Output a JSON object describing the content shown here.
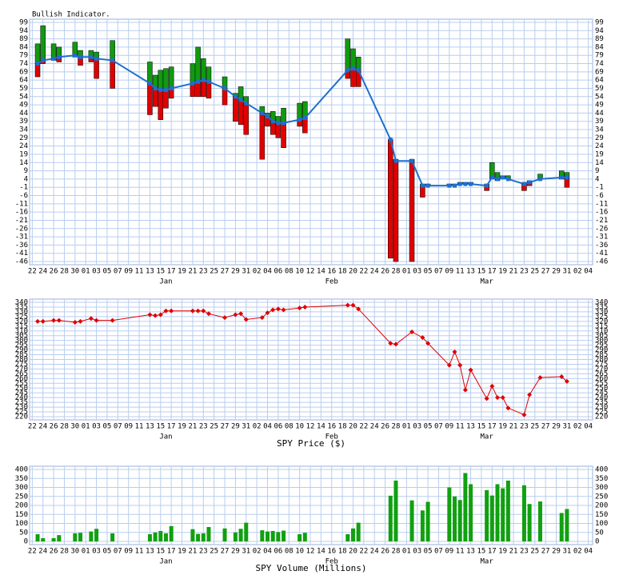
{
  "chart_data": [
    {
      "type": "hilo",
      "title": "Bullish Indicator.",
      "x": [
        1,
        2,
        4,
        5,
        8,
        9,
        11,
        12,
        15,
        22,
        23,
        24,
        25,
        26,
        30,
        31,
        32,
        33,
        36,
        38,
        39,
        40,
        43,
        44,
        45,
        46,
        47,
        50,
        51,
        59,
        60,
        61,
        67,
        68,
        71,
        73,
        74,
        78,
        79,
        80,
        81,
        82,
        85,
        86,
        87,
        88,
        89,
        92,
        93,
        95,
        99,
        100
      ],
      "values": [
        74,
        76,
        77,
        78,
        79,
        78,
        78,
        77,
        76,
        62,
        59,
        58,
        58,
        59,
        62,
        63,
        64,
        63,
        59,
        54,
        52,
        50,
        44,
        42,
        39,
        38,
        38,
        40,
        41,
        70,
        71,
        70,
        28,
        15,
        15,
        0,
        0,
        0,
        0,
        1,
        1,
        1,
        0,
        5,
        4,
        5,
        4,
        1,
        2,
        4,
        5,
        5
      ],
      "high": [
        86,
        97,
        86,
        84,
        87,
        82,
        82,
        81,
        88,
        75,
        67,
        70,
        71,
        72,
        74,
        84,
        77,
        72,
        66,
        56,
        60,
        54,
        48,
        44,
        45,
        42,
        47,
        50,
        51,
        89,
        83,
        78,
        28,
        16,
        16,
        1,
        1,
        1,
        1,
        2,
        2,
        2,
        1,
        14,
        8,
        6,
        6,
        2,
        3,
        7,
        9,
        8
      ],
      "low": [
        66,
        74,
        76,
        75,
        78,
        73,
        75,
        65,
        59,
        43,
        48,
        40,
        47,
        53,
        54,
        54,
        54,
        53,
        49,
        39,
        37,
        31,
        16,
        36,
        31,
        29,
        23,
        36,
        32,
        65,
        60,
        60,
        -44,
        -46,
        -46,
        -7,
        0,
        0,
        0,
        1,
        1,
        1,
        -3,
        4,
        3,
        4,
        4,
        -3,
        0,
        4,
        4,
        -1
      ],
      "color": "#1e6fcf",
      "high_color": "#109a10",
      "low_color": "#e00000",
      "xlim": [
        -0.5,
        104.8
      ],
      "xticks": [
        {
          "value": 0,
          "label": "22"
        },
        {
          "value": 2,
          "label": "24"
        },
        {
          "value": 4,
          "label": "26"
        },
        {
          "value": 6,
          "label": "28"
        },
        {
          "value": 8,
          "label": "30"
        },
        {
          "value": 10,
          "label": "01"
        },
        {
          "value": 12,
          "label": "03"
        },
        {
          "value": 14,
          "label": "05"
        },
        {
          "value": 16,
          "label": "07"
        },
        {
          "value": 18,
          "label": "09"
        },
        {
          "value": 20,
          "label": "11"
        },
        {
          "value": 22,
          "label": "13"
        },
        {
          "value": 24,
          "label": "15"
        },
        {
          "value": 26,
          "label": "17"
        },
        {
          "value": 28,
          "label": "19"
        },
        {
          "value": 30,
          "label": "21"
        },
        {
          "value": 32,
          "label": "23"
        },
        {
          "value": 34,
          "label": "25"
        },
        {
          "value": 36,
          "label": "27"
        },
        {
          "value": 38,
          "label": "29"
        },
        {
          "value": 40,
          "label": "31"
        },
        {
          "value": 42,
          "label": "02"
        },
        {
          "value": 44,
          "label": "04"
        },
        {
          "value": 46,
          "label": "06"
        },
        {
          "value": 48,
          "label": "08"
        },
        {
          "value": 50,
          "label": "10"
        },
        {
          "value": 52,
          "label": "12"
        },
        {
          "value": 54,
          "label": "14"
        },
        {
          "value": 56,
          "label": "16"
        },
        {
          "value": 58,
          "label": "18"
        },
        {
          "value": 60,
          "label": "20"
        },
        {
          "value": 62,
          "label": "22"
        },
        {
          "value": 64,
          "label": "24"
        },
        {
          "value": 66,
          "label": "26"
        },
        {
          "value": 68,
          "label": "28"
        },
        {
          "value": 70,
          "label": "01"
        },
        {
          "value": 72,
          "label": "03"
        },
        {
          "value": 74,
          "label": "05"
        },
        {
          "value": 76,
          "label": "07"
        },
        {
          "value": 78,
          "label": "09"
        },
        {
          "value": 80,
          "label": "11"
        },
        {
          "value": 82,
          "label": "13"
        },
        {
          "value": 84,
          "label": "15"
        },
        {
          "value": 86,
          "label": "17"
        },
        {
          "value": 88,
          "label": "19"
        },
        {
          "value": 90,
          "label": "21"
        },
        {
          "value": 92,
          "label": "23"
        },
        {
          "value": 94,
          "label": "25"
        },
        {
          "value": 96,
          "label": "27"
        },
        {
          "value": 98,
          "label": "29"
        },
        {
          "value": 100,
          "label": "31"
        },
        {
          "value": 102,
          "label": "02"
        },
        {
          "value": 104,
          "label": "04"
        }
      ],
      "month_ticks": [
        {
          "value": 25,
          "label": "Jan"
        },
        {
          "value": 56,
          "label": "Feb"
        },
        {
          "value": 85,
          "label": "Mar"
        }
      ],
      "ylim": [
        -46,
        99
      ],
      "yticks": [
        -46,
        -41,
        -36,
        -31,
        -26,
        -21,
        -16,
        -11,
        -6,
        -1,
        4,
        9,
        14,
        19,
        24,
        29,
        34,
        39,
        44,
        49,
        54,
        59,
        64,
        69,
        74,
        79,
        84,
        89,
        94,
        99
      ],
      "grid": true
    },
    {
      "type": "line",
      "xlabel": "SPY Price ($)",
      "x": [
        1,
        2,
        4,
        5,
        8,
        9,
        11,
        12,
        15,
        22,
        23,
        24,
        25,
        26,
        30,
        31,
        32,
        33,
        36,
        38,
        39,
        40,
        43,
        44,
        45,
        46,
        47,
        50,
        51,
        59,
        60,
        61,
        67,
        68,
        71,
        73,
        74,
        78,
        79,
        80,
        81,
        82,
        85,
        86,
        87,
        88,
        89,
        92,
        93,
        95,
        99,
        100
      ],
      "values": [
        320,
        320,
        321,
        321,
        319,
        320,
        323,
        321,
        321,
        327,
        326,
        327,
        331,
        331,
        331,
        331,
        331,
        328,
        324,
        327,
        328,
        322,
        324,
        329,
        332,
        333,
        332,
        334,
        335,
        337,
        337,
        333,
        297,
        296,
        309,
        303,
        297,
        274,
        288,
        274,
        248,
        269,
        239,
        252,
        240,
        240,
        229,
        222,
        243,
        261,
        262,
        257
      ],
      "color": "#e00000",
      "xlim": [
        -0.5,
        104.8
      ],
      "xticks": [
        {
          "value": 0,
          "label": "22"
        },
        {
          "value": 2,
          "label": "24"
        },
        {
          "value": 4,
          "label": "26"
        },
        {
          "value": 6,
          "label": "28"
        },
        {
          "value": 8,
          "label": "30"
        },
        {
          "value": 10,
          "label": "01"
        },
        {
          "value": 12,
          "label": "03"
        },
        {
          "value": 14,
          "label": "05"
        },
        {
          "value": 16,
          "label": "07"
        },
        {
          "value": 18,
          "label": "09"
        },
        {
          "value": 20,
          "label": "11"
        },
        {
          "value": 22,
          "label": "13"
        },
        {
          "value": 24,
          "label": "15"
        },
        {
          "value": 26,
          "label": "17"
        },
        {
          "value": 28,
          "label": "19"
        },
        {
          "value": 30,
          "label": "21"
        },
        {
          "value": 32,
          "label": "23"
        },
        {
          "value": 34,
          "label": "25"
        },
        {
          "value": 36,
          "label": "27"
        },
        {
          "value": 38,
          "label": "29"
        },
        {
          "value": 40,
          "label": "31"
        },
        {
          "value": 42,
          "label": "02"
        },
        {
          "value": 44,
          "label": "04"
        },
        {
          "value": 46,
          "label": "06"
        },
        {
          "value": 48,
          "label": "08"
        },
        {
          "value": 50,
          "label": "10"
        },
        {
          "value": 52,
          "label": "12"
        },
        {
          "value": 54,
          "label": "14"
        },
        {
          "value": 56,
          "label": "16"
        },
        {
          "value": 58,
          "label": "18"
        },
        {
          "value": 60,
          "label": "20"
        },
        {
          "value": 62,
          "label": "22"
        },
        {
          "value": 64,
          "label": "24"
        },
        {
          "value": 66,
          "label": "26"
        },
        {
          "value": 68,
          "label": "28"
        },
        {
          "value": 70,
          "label": "01"
        },
        {
          "value": 72,
          "label": "03"
        },
        {
          "value": 74,
          "label": "05"
        },
        {
          "value": 76,
          "label": "07"
        },
        {
          "value": 78,
          "label": "09"
        },
        {
          "value": 80,
          "label": "11"
        },
        {
          "value": 82,
          "label": "13"
        },
        {
          "value": 84,
          "label": "15"
        },
        {
          "value": 86,
          "label": "17"
        },
        {
          "value": 88,
          "label": "19"
        },
        {
          "value": 90,
          "label": "21"
        },
        {
          "value": 92,
          "label": "23"
        },
        {
          "value": 94,
          "label": "25"
        },
        {
          "value": 96,
          "label": "27"
        },
        {
          "value": 98,
          "label": "29"
        },
        {
          "value": 100,
          "label": "31"
        },
        {
          "value": 102,
          "label": "02"
        },
        {
          "value": 104,
          "label": "04"
        }
      ],
      "month_ticks": [
        {
          "value": 25,
          "label": "Jan"
        },
        {
          "value": 56,
          "label": "Feb"
        },
        {
          "value": 85,
          "label": "Mar"
        }
      ],
      "ylim": [
        220,
        340
      ],
      "yticks": [
        220,
        225,
        230,
        235,
        240,
        245,
        250,
        255,
        260,
        265,
        270,
        275,
        280,
        285,
        290,
        295,
        300,
        305,
        310,
        315,
        320,
        325,
        330,
        335,
        340
      ],
      "grid": true
    },
    {
      "type": "bar",
      "xlabel": "SPY Volume (Millions)",
      "x": [
        1,
        2,
        4,
        5,
        8,
        9,
        11,
        12,
        15,
        22,
        23,
        24,
        25,
        26,
        30,
        31,
        32,
        33,
        36,
        38,
        39,
        40,
        43,
        44,
        45,
        46,
        47,
        50,
        51,
        59,
        60,
        61,
        67,
        68,
        71,
        73,
        74,
        78,
        79,
        80,
        81,
        82,
        85,
        86,
        87,
        88,
        89,
        92,
        93,
        95,
        99,
        100
      ],
      "values": [
        40,
        18,
        18,
        35,
        45,
        48,
        55,
        70,
        45,
        40,
        50,
        58,
        45,
        85,
        68,
        42,
        45,
        80,
        72,
        50,
        70,
        104,
        62,
        55,
        58,
        52,
        60,
        40,
        48,
        40,
        72,
        104,
        254,
        338,
        228,
        172,
        220,
        300,
        250,
        230,
        380,
        318,
        285,
        255,
        318,
        295,
        338,
        312,
        208,
        222,
        158,
        180
      ],
      "color": "#10a010",
      "xlim": [
        -0.5,
        104.8
      ],
      "xticks": [
        {
          "value": 0,
          "label": "22"
        },
        {
          "value": 2,
          "label": "24"
        },
        {
          "value": 4,
          "label": "26"
        },
        {
          "value": 6,
          "label": "28"
        },
        {
          "value": 8,
          "label": "30"
        },
        {
          "value": 10,
          "label": "01"
        },
        {
          "value": 12,
          "label": "03"
        },
        {
          "value": 14,
          "label": "05"
        },
        {
          "value": 16,
          "label": "07"
        },
        {
          "value": 18,
          "label": "09"
        },
        {
          "value": 20,
          "label": "11"
        },
        {
          "value": 22,
          "label": "13"
        },
        {
          "value": 24,
          "label": "15"
        },
        {
          "value": 26,
          "label": "17"
        },
        {
          "value": 28,
          "label": "19"
        },
        {
          "value": 30,
          "label": "21"
        },
        {
          "value": 32,
          "label": "23"
        },
        {
          "value": 34,
          "label": "25"
        },
        {
          "value": 36,
          "label": "27"
        },
        {
          "value": 38,
          "label": "29"
        },
        {
          "value": 40,
          "label": "31"
        },
        {
          "value": 42,
          "label": "02"
        },
        {
          "value": 44,
          "label": "04"
        },
        {
          "value": 46,
          "label": "06"
        },
        {
          "value": 48,
          "label": "08"
        },
        {
          "value": 50,
          "label": "10"
        },
        {
          "value": 52,
          "label": "12"
        },
        {
          "value": 54,
          "label": "14"
        },
        {
          "value": 56,
          "label": "16"
        },
        {
          "value": 58,
          "label": "18"
        },
        {
          "value": 60,
          "label": "20"
        },
        {
          "value": 62,
          "label": "22"
        },
        {
          "value": 64,
          "label": "24"
        },
        {
          "value": 66,
          "label": "26"
        },
        {
          "value": 68,
          "label": "28"
        },
        {
          "value": 70,
          "label": "01"
        },
        {
          "value": 72,
          "label": "03"
        },
        {
          "value": 74,
          "label": "05"
        },
        {
          "value": 76,
          "label": "07"
        },
        {
          "value": 78,
          "label": "09"
        },
        {
          "value": 80,
          "label": "11"
        },
        {
          "value": 82,
          "label": "13"
        },
        {
          "value": 84,
          "label": "15"
        },
        {
          "value": 86,
          "label": "17"
        },
        {
          "value": 88,
          "label": "19"
        },
        {
          "value": 90,
          "label": "21"
        },
        {
          "value": 92,
          "label": "23"
        },
        {
          "value": 94,
          "label": "25"
        },
        {
          "value": 96,
          "label": "27"
        },
        {
          "value": 98,
          "label": "29"
        },
        {
          "value": 100,
          "label": "31"
        },
        {
          "value": 102,
          "label": "02"
        },
        {
          "value": 104,
          "label": "04"
        }
      ],
      "month_ticks": [
        {
          "value": 25,
          "label": "Jan"
        },
        {
          "value": 56,
          "label": "Feb"
        },
        {
          "value": 85,
          "label": "Mar"
        }
      ],
      "ylim": [
        0,
        400
      ],
      "yticks": [
        0,
        50,
        100,
        150,
        200,
        250,
        300,
        350,
        400
      ],
      "grid": true
    }
  ]
}
